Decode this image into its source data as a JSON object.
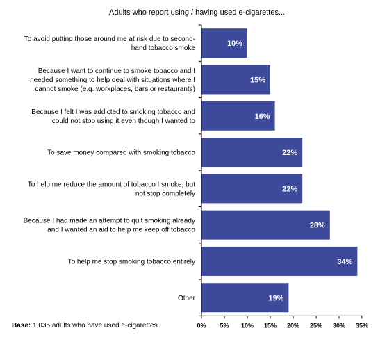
{
  "chart_data": {
    "type": "bar",
    "orientation": "horizontal",
    "title": "Adults who report using / having used e-cigarettes...",
    "categories": [
      [
        "To avoid putting those around me at risk due to second-",
        "hand tobacco smoke"
      ],
      [
        "Because I want to continue to smoke tobacco and I",
        "needed something to help deal with situations where I",
        "cannot smoke (e.g. workplaces, bars or restaurants)"
      ],
      [
        "Because I felt I was addicted to smoking tobacco and",
        "could not stop using it even though I wanted to"
      ],
      [
        "To save money compared with smoking tobacco"
      ],
      [
        "To help me reduce the amount of tobacco I smoke, but",
        "not stop completely"
      ],
      [
        "Because I had made an attempt to quit smoking already",
        "and I wanted an aid to help me keep off tobacco"
      ],
      [
        "To help me stop smoking tobacco entirely"
      ],
      [
        "Other"
      ]
    ],
    "values": [
      10,
      15,
      16,
      22,
      22,
      28,
      34,
      19
    ],
    "value_labels": [
      "10%",
      "15%",
      "16%",
      "22%",
      "22%",
      "28%",
      "34%",
      "19%"
    ],
    "xlim": [
      0,
      35
    ],
    "xticks": [
      0,
      5,
      10,
      15,
      20,
      25,
      30,
      35
    ],
    "xtick_labels": [
      "0%",
      "5%",
      "10%",
      "15%",
      "20%",
      "25%",
      "30%",
      "35%"
    ],
    "bar_color": "#3d4a9c",
    "grid": false
  },
  "base_note": {
    "label": "Base:",
    "text": " 1,035 adults who have used e-cigarettes"
  }
}
